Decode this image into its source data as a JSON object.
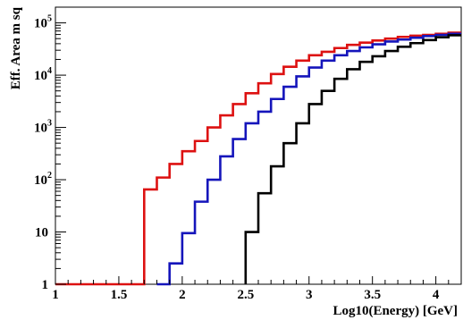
{
  "chart_data": {
    "type": "line",
    "style": "step-histogram",
    "xlabel": "Log10(Energy) [GeV]",
    "ylabel": "Eff. Area m sq",
    "xlim": [
      1.0,
      4.2
    ],
    "ylim": [
      1,
      200000
    ],
    "y_scale": "log",
    "grid": false,
    "legend": "none",
    "x_ticks": [
      "1",
      "1.5",
      "2",
      "2.5",
      "3",
      "3.5",
      "4"
    ],
    "y_ticks": [
      {
        "base": "1",
        "exp": ""
      },
      {
        "base": "10",
        "exp": ""
      },
      {
        "base": "10",
        "exp": "2"
      },
      {
        "base": "10",
        "exp": "3"
      },
      {
        "base": "10",
        "exp": "4"
      },
      {
        "base": "10",
        "exp": "5"
      }
    ],
    "bin_edges": [
      1.0,
      1.1,
      1.2,
      1.3,
      1.4,
      1.5,
      1.6,
      1.7,
      1.8,
      1.9,
      2.0,
      2.1,
      2.2,
      2.3,
      2.4,
      2.5,
      2.6,
      2.7,
      2.8,
      2.9,
      3.0,
      3.1,
      3.2,
      3.3,
      3.4,
      3.5,
      3.6,
      3.7,
      3.8,
      3.9,
      4.0,
      4.1,
      4.2
    ],
    "series": [
      {
        "color": "#dd1111",
        "values": [
          1,
          1,
          1,
          1,
          1,
          1,
          1,
          65,
          110,
          200,
          350,
          550,
          1000,
          1700,
          2800,
          4500,
          7000,
          10500,
          14500,
          19000,
          24000,
          28000,
          33000,
          38000,
          42000,
          46000,
          50000,
          54000,
          57000,
          59000,
          62000,
          65000
        ]
      },
      {
        "color": "#1515bb",
        "values": [
          null,
          null,
          null,
          null,
          null,
          null,
          null,
          null,
          1,
          2.5,
          9.5,
          38,
          100,
          280,
          600,
          1200,
          2000,
          3500,
          6000,
          9500,
          14000,
          19000,
          24000,
          29000,
          34000,
          39000,
          44000,
          48000,
          52000,
          56000,
          59000,
          62000
        ]
      },
      {
        "color": "#000000",
        "values": [
          null,
          null,
          null,
          null,
          null,
          null,
          null,
          null,
          null,
          null,
          null,
          null,
          null,
          null,
          null,
          10,
          55,
          180,
          500,
          1200,
          2800,
          5000,
          8500,
          13000,
          18000,
          23000,
          29000,
          35000,
          41000,
          47000,
          53000,
          58000
        ]
      }
    ]
  }
}
